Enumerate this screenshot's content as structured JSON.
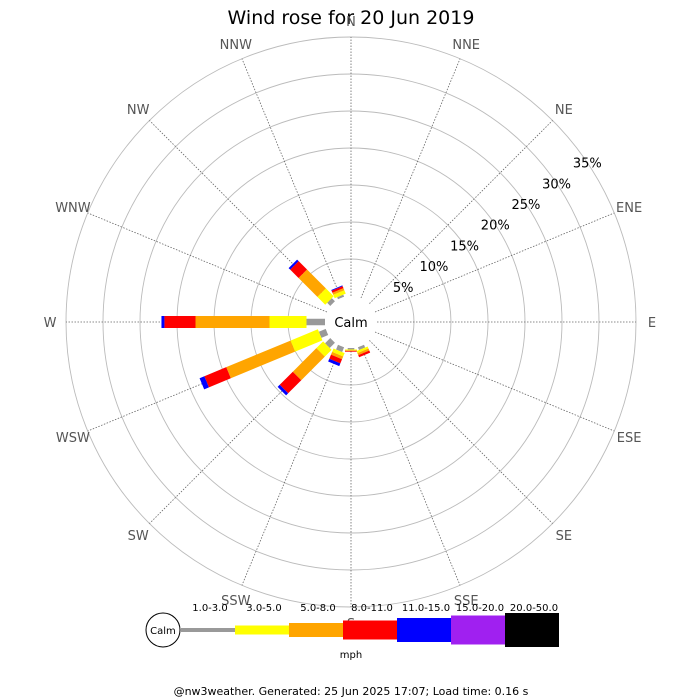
{
  "chart_data": {
    "type": "wind-rose",
    "title": "Wind rose for 20 Jun 2019",
    "directions": [
      "N",
      "NNE",
      "NE",
      "ENE",
      "E",
      "ESE",
      "SE",
      "SSE",
      "S",
      "SSW",
      "SW",
      "WSW",
      "W",
      "WNW",
      "NW",
      "NNW"
    ],
    "rings_percent": [
      5,
      10,
      15,
      20,
      25,
      30,
      35
    ],
    "ring_labels": [
      "5%",
      "10%",
      "15%",
      "20%",
      "25%",
      "30%",
      "35%"
    ],
    "calm_label": "Calm",
    "speed_bins": [
      {
        "label": "1.0-3.0",
        "color": "#999999"
      },
      {
        "label": "3.0-5.0",
        "color": "#ffff00"
      },
      {
        "label": "5.0-8.0",
        "color": "#ffa500"
      },
      {
        "label": "8.0-11.0",
        "color": "#ff0000"
      },
      {
        "label": "11.0-15.0",
        "color": "#0000ff"
      },
      {
        "label": "15.0-20.0",
        "color": "#a020f0"
      },
      {
        "label": "20.0-50.0",
        "color": "#000000"
      }
    ],
    "units": "mph",
    "frequencies_percent": {
      "NNW": [
        0.3,
        0.5,
        0.3,
        0.3,
        0.1,
        0,
        0
      ],
      "NW": [
        0.6,
        1.5,
        3.6,
        1.6,
        0.3,
        0,
        0
      ],
      "W": [
        2.5,
        5.0,
        10.0,
        4.2,
        0.4,
        0,
        0
      ],
      "WSW": [
        1.0,
        4.0,
        9.4,
        3.2,
        0.7,
        0,
        0
      ],
      "SW": [
        1.0,
        1.3,
        4.5,
        2.5,
        0.4,
        0,
        0
      ],
      "SSW": [
        0.7,
        0.5,
        0.4,
        0.6,
        0.4,
        0,
        0
      ],
      "S": [
        0.2,
        0.1,
        0.1,
        0.1,
        0,
        0,
        0
      ],
      "SSE": [
        0.4,
        0.3,
        0.3,
        0.3,
        0,
        0,
        0
      ]
    }
  },
  "footer": "@nw3weather. Generated: 25 Jun 2025 17:07; Load time: 0.16 s"
}
